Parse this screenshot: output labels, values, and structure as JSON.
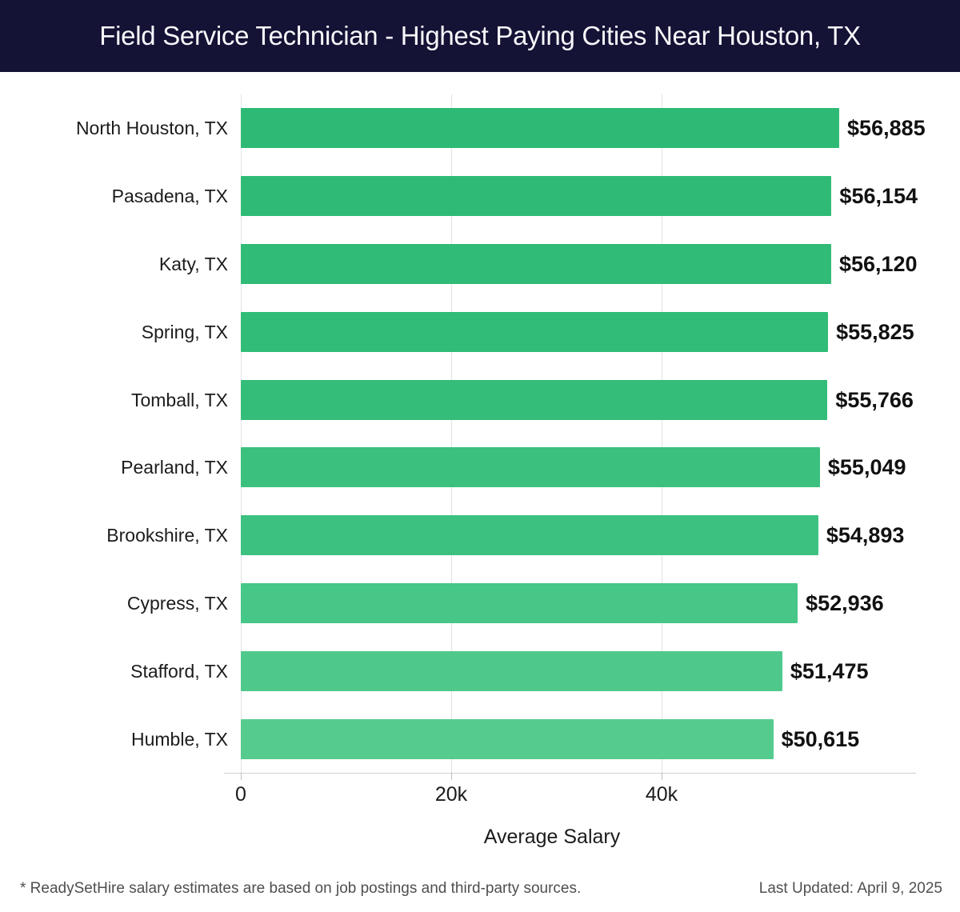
{
  "header": {
    "title": "Field Service Technician - Highest Paying Cities Near Houston, TX",
    "bg_color": "#141235",
    "text_color": "#f8f8fb"
  },
  "chart_data": {
    "type": "bar",
    "orientation": "horizontal",
    "title": "Field Service Technician - Highest Paying Cities Near Houston, TX",
    "categories": [
      "North Houston, TX",
      "Pasadena, TX",
      "Katy, TX",
      "Spring, TX",
      "Tomball, TX",
      "Pearland, TX",
      "Brookshire, TX",
      "Cypress, TX",
      "Stafford, TX",
      "Humble, TX"
    ],
    "values": [
      56885,
      56154,
      56120,
      55825,
      55766,
      55049,
      54893,
      52936,
      51475,
      50615
    ],
    "value_labels": [
      "$56,885",
      "$56,154",
      "$56,120",
      "$55,825",
      "$55,766",
      "$55,049",
      "$54,893",
      "$52,936",
      "$51,475",
      "$50,615"
    ],
    "bar_colors": [
      "#2eba74",
      "#2fbb75",
      "#30bb76",
      "#31bc77",
      "#33bd78",
      "#3bc07e",
      "#3dc180",
      "#46c687",
      "#4fc98b",
      "#55cb8e"
    ],
    "xlabel": "Average Salary",
    "xticks": [
      {
        "value": 0,
        "label": "0"
      },
      {
        "value": 20000,
        "label": "20k"
      },
      {
        "value": 40000,
        "label": "40k"
      }
    ],
    "xlim": [
      0,
      64000
    ],
    "grid": "vertical-gridlines-on",
    "legend": "none",
    "bar_label_position": "right-of-bar"
  },
  "footer": {
    "disclaimer": "* ReadySetHire salary estimates are based on job postings and third-party sources.",
    "last_updated": "Last Updated: April 9, 2025"
  }
}
